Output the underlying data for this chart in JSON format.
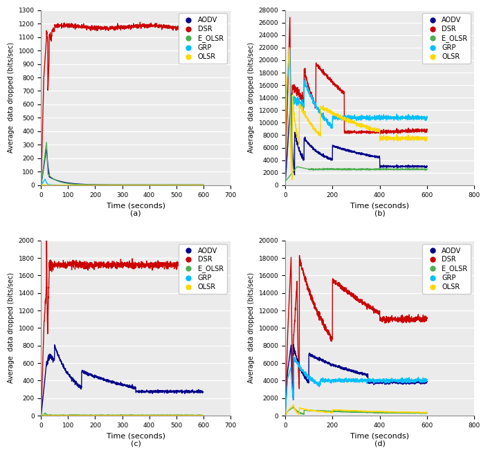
{
  "colors": {
    "AODV": "#00008B",
    "DSR": "#CC0000",
    "E_OLSR": "#4CAF50",
    "GRP": "#00BFFF",
    "OLSR": "#FFD700"
  },
  "legend_labels": [
    "AODV",
    "DSR",
    "E_OLSR",
    "GRP",
    "OLSR"
  ],
  "xlabel": "Time (seconds)",
  "ylabel": "Average  data dropped (bits/sec)",
  "subplots": [
    "(a)",
    "(b)",
    "(c)",
    "(d)"
  ],
  "subplot_a": {
    "xlim": [
      0,
      700
    ],
    "ylim": [
      0,
      1300
    ],
    "xticks": [
      0,
      100,
      200,
      300,
      400,
      500,
      600,
      700
    ],
    "yticks": [
      0,
      100,
      200,
      300,
      400,
      500,
      600,
      700,
      800,
      900,
      1000,
      1100,
      1200,
      1300
    ]
  },
  "subplot_b": {
    "xlim": [
      0,
      800
    ],
    "ylim": [
      0,
      28000
    ],
    "xticks": [
      0,
      200,
      400,
      600,
      800
    ],
    "yticks": [
      0,
      2000,
      4000,
      6000,
      8000,
      10000,
      12000,
      14000,
      16000,
      18000,
      20000,
      22000,
      24000,
      26000,
      28000
    ]
  },
  "subplot_c": {
    "xlim": [
      0,
      700
    ],
    "ylim": [
      0,
      2000
    ],
    "xticks": [
      0,
      100,
      200,
      300,
      400,
      500,
      600,
      700
    ],
    "yticks": [
      0,
      200,
      400,
      600,
      800,
      1000,
      1200,
      1400,
      1600,
      1800,
      2000
    ]
  },
  "subplot_d": {
    "xlim": [
      0,
      800
    ],
    "ylim": [
      0,
      20000
    ],
    "xticks": [
      0,
      200,
      400,
      600,
      800
    ],
    "yticks": [
      0,
      2000,
      4000,
      6000,
      8000,
      10000,
      12000,
      14000,
      16000,
      18000,
      20000
    ]
  }
}
